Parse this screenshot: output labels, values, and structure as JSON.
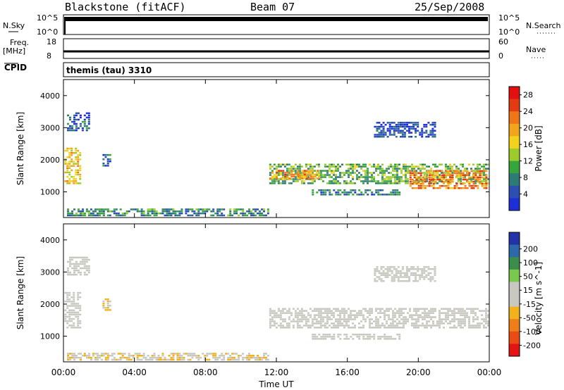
{
  "header": {
    "station": "Blackstone (fitACF)",
    "beam": "Beam 07",
    "date": "25/Sep/2008"
  },
  "side_labels": {
    "nsky": "N.Sky",
    "freq": "Freq.",
    "mhz": "[MHz]",
    "cpid": "CPID",
    "nsearch": "N.Search",
    "nave": "Nave",
    "nsky_ticks": [
      "10^5",
      "10^0"
    ],
    "freq_ticks": [
      "18",
      "8"
    ],
    "nsearch_ticks": [
      "10^5",
      "10^0"
    ],
    "nave_ticks": [
      "60",
      "0"
    ]
  },
  "cpid_text": "themis (tau) 3310",
  "colors": {
    "power_scale": [
      "#1e2fd8",
      "#2c4fb4",
      "#2e7a74",
      "#36a63c",
      "#9bcc2c",
      "#f2d21a",
      "#f2a41c",
      "#f07418",
      "#e43a14",
      "#e21010"
    ],
    "velocity_scale": [
      "#2233aa",
      "#2f68a8",
      "#3c8c4c",
      "#7ac84e",
      "#c8c8c0",
      "#c8c8c0",
      "#f2b21a",
      "#f07e18",
      "#ea4a14",
      "#e41414"
    ],
    "ground_scatter": "#b5b5aa"
  },
  "chart_data": [
    {
      "type": "heatmap",
      "panel": "power",
      "ylabel": "Slant Range [km]",
      "xlabel": "",
      "ylim": [
        200,
        4500
      ],
      "xlim": [
        0,
        24
      ],
      "y_ticks": [
        "1000",
        "2000",
        "3000",
        "4000"
      ],
      "x_ticks": [
        "00:00",
        "04:00",
        "08:00",
        "12:00",
        "16:00",
        "20:00",
        "00:00"
      ],
      "colorbar_label": "Power [dB]",
      "colorbar_ticks": [
        "4",
        "8",
        "12",
        "16",
        "20",
        "24",
        "28"
      ],
      "colorbar_range": [
        0,
        30
      ],
      "regions": [
        {
          "t0": 0.05,
          "t1": 1.0,
          "r0": 1250,
          "r1": 2400,
          "value": 17
        },
        {
          "t0": 0.2,
          "t1": 1.5,
          "r0": 2900,
          "r1": 3500,
          "value": 5
        },
        {
          "t0": 2.2,
          "t1": 2.7,
          "r0": 1800,
          "r1": 2200,
          "value": 6
        },
        {
          "t0": 0.2,
          "t1": 11.6,
          "r0": 250,
          "r1": 500,
          "value": 8
        },
        {
          "t0": 11.6,
          "t1": 24.0,
          "r0": 1250,
          "r1": 1900,
          "value": 11
        },
        {
          "t0": 11.6,
          "t1": 14.5,
          "r0": 1400,
          "r1": 1700,
          "value": 20
        },
        {
          "t0": 19.5,
          "t1": 23.9,
          "r0": 1100,
          "r1": 1700,
          "value": 22
        },
        {
          "t0": 14.0,
          "t1": 19.0,
          "r0": 900,
          "r1": 1100,
          "value": 7
        },
        {
          "t0": 17.5,
          "t1": 21.0,
          "r0": 2700,
          "r1": 3200,
          "value": 4
        }
      ]
    },
    {
      "type": "heatmap",
      "panel": "velocity",
      "ylabel": "Slant Range [km]",
      "xlabel": "Time UT",
      "ylim": [
        200,
        4500
      ],
      "xlim": [
        0,
        24
      ],
      "y_ticks": [
        "1000",
        "2000",
        "3000",
        "4000"
      ],
      "x_ticks": [
        "00:00",
        "04:00",
        "08:00",
        "12:00",
        "16:00",
        "20:00",
        "00:00"
      ],
      "colorbar_label": "Velocity [m s^-1]",
      "colorbar_ticks": [
        "200",
        "100",
        "50",
        "15",
        "-15",
        "-50",
        "-100",
        "-200"
      ],
      "colorbar_range": [
        -250,
        250
      ],
      "regions": [
        {
          "t0": 0.05,
          "t1": 1.0,
          "r0": 1250,
          "r1": 2400,
          "value": 0
        },
        {
          "t0": 0.2,
          "t1": 1.5,
          "r0": 2900,
          "r1": 3500,
          "value": 0
        },
        {
          "t0": 2.2,
          "t1": 2.7,
          "r0": 1800,
          "r1": 2200,
          "value": -60
        },
        {
          "t0": 0.2,
          "t1": 11.6,
          "r0": 250,
          "r1": 500,
          "value": -40
        },
        {
          "t0": 11.6,
          "t1": 24.0,
          "r0": 1250,
          "r1": 1900,
          "value": 0
        },
        {
          "t0": 14.0,
          "t1": 19.0,
          "r0": 900,
          "r1": 1100,
          "value": 0
        },
        {
          "t0": 17.5,
          "t1": 21.0,
          "r0": 2700,
          "r1": 3200,
          "value": 0
        }
      ]
    }
  ]
}
